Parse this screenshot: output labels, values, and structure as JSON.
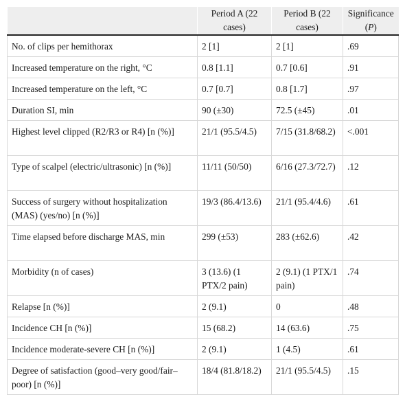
{
  "table": {
    "headers": {
      "parameter": "",
      "period_a": "Period A (22 cases)",
      "period_b": "Period B (22 cases)",
      "significance_label": "Significance",
      "significance_p": "P"
    },
    "rows": [
      {
        "parameter": "No. of clips per hemithorax",
        "period_a": "2 [1]",
        "period_b": "2 [1]",
        "p": ".69"
      },
      {
        "parameter": "Increased temperature on the right, °C",
        "period_a": "0.8 [1.1]",
        "period_b": "0.7 [0.6]",
        "p": ".91"
      },
      {
        "parameter": "Increased temperature on the left, °C",
        "period_a": "0.7 [0.7]",
        "period_b": "0.8 [1.7]",
        "p": ".97"
      },
      {
        "parameter": "Duration SI, min",
        "period_a": "90 (±30)",
        "period_b": "72.5 (±45)",
        "p": ".01"
      },
      {
        "parameter": "Highest level clipped (R2/R3 or R4) [n (%)]",
        "period_a": "21/1 (95.5/4.5)",
        "period_b": "7/15 (31.8/68.2)",
        "p": "<.001"
      },
      {
        "parameter": "Type of scalpel (electric/ultrasonic) [n (%)]",
        "period_a": "11/11 (50/50)",
        "period_b": "6/16 (27.3/72.7)",
        "p": ".12"
      },
      {
        "parameter": "Success of surgery without hospitalization (MAS) (yes/no) [n (%)]",
        "period_a": "19/3 (86.4/13.6)",
        "period_b": "21/1 (95.4/4.6)",
        "p": ".61"
      },
      {
        "parameter": "Time elapsed before discharge MAS, min",
        "period_a": "299 (±53)",
        "period_b": "283 (±62.6)",
        "p": ".42"
      },
      {
        "parameter": "Morbidity (n of cases)",
        "period_a": "3 (13.6) (1 PTX/2 pain)",
        "period_b": "2 (9.1) (1 PTX/1 pain)",
        "p": ".74"
      },
      {
        "parameter": "Relapse [n (%)]",
        "period_a": "2 (9.1)",
        "period_b": "0",
        "p": ".48"
      },
      {
        "parameter": "Incidence CH [n (%)]",
        "period_a": "15 (68.2)",
        "period_b": "14 (63.6)",
        "p": ".75"
      },
      {
        "parameter": "Incidence moderate-severe CH [n (%)]",
        "period_a": "2 (9.1)",
        "period_b": "1 (4.5)",
        "p": ".61"
      },
      {
        "parameter": "Degree of satisfaction (good–very good/fair–poor) [n (%)]",
        "period_a": "18/4 (81.8/18.2)",
        "period_b": "21/1 (95.5/4.5)",
        "p": ".15"
      }
    ]
  }
}
